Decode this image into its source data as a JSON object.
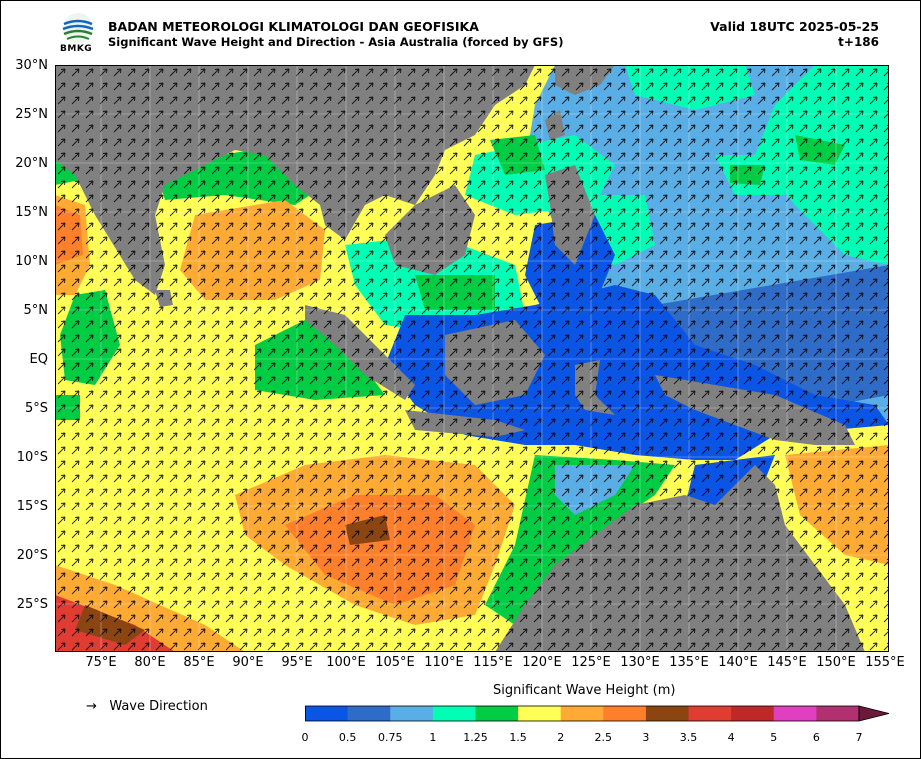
{
  "header": {
    "organization": "BADAN METEOROLOGI KLIMATOLOGI DAN GEOFISIKA",
    "subtitle": "Significant Wave Height and Direction - Asia Australia (forced by GFS)",
    "valid": "Valid 18UTC 2025-05-25",
    "step": "t+186",
    "logo_text": "BMKG"
  },
  "map": {
    "lat_labels": [
      "30°N",
      "25°N",
      "20°N",
      "15°N",
      "10°N",
      "5°N",
      "EQ",
      "5°S",
      "10°S",
      "15°S",
      "20°S",
      "25°S"
    ],
    "lon_labels": [
      "75°E",
      "80°E",
      "85°E",
      "90°E",
      "95°E",
      "100°E",
      "105°E",
      "110°E",
      "115°E",
      "120°E",
      "125°E",
      "130°E",
      "135°E",
      "140°E",
      "145°E",
      "150°E",
      "155°E"
    ],
    "land_color": "#808080",
    "region_colors": {
      "south_indian_high": "#ff7f2a",
      "equatorial_low": "#0a55e6",
      "pacific_mid": "#5aaee6"
    }
  },
  "legend": {
    "direction_symbol": "→",
    "direction_label": "Wave Direction"
  },
  "colorbar": {
    "title": "Significant Wave Height (m)",
    "ticks": [
      "0",
      "0.5",
      "0.75",
      "1",
      "1.25",
      "1.5",
      "2",
      "2.5",
      "3",
      "3.5",
      "4",
      "5",
      "6",
      "7"
    ],
    "colors": [
      "#0a55e6",
      "#2f6cc8",
      "#5aaee6",
      "#00ffb4",
      "#00cc44",
      "#ffff55",
      "#ffaa33",
      "#ff7f2a",
      "#8b4513",
      "#e03c32",
      "#c02828",
      "#e040c0",
      "#b03070"
    ],
    "extend_color": "#6b1a3a"
  }
}
